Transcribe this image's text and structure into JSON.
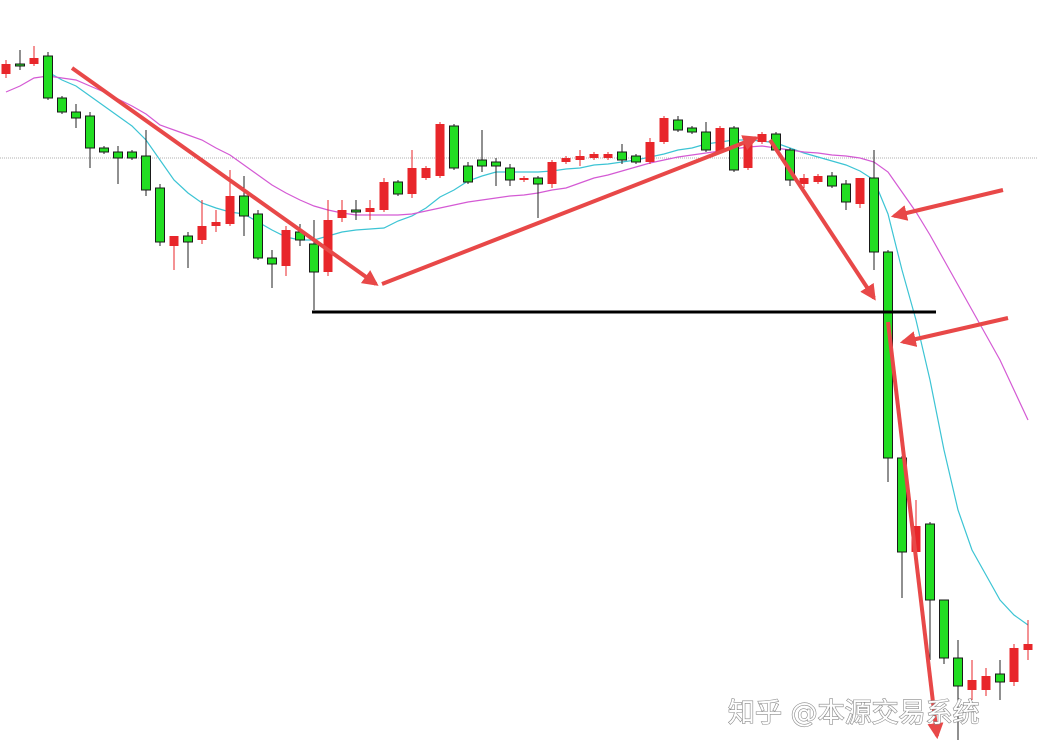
{
  "watermark": "知乎 @本源交易系统",
  "chart_data": {
    "type": "candlestick",
    "ylim": [
      0,
      756
    ],
    "up_color": "#e8262a",
    "down_color": "#22dd22",
    "open": [
      682,
      692,
      692,
      700,
      658,
      644,
      640,
      608,
      604,
      604,
      600,
      568,
      510,
      520,
      516,
      530,
      532,
      560,
      542,
      498,
      490,
      524,
      512,
      484,
      538,
      546,
      544,
      546,
      574,
      562,
      578,
      580,
      630,
      590,
      596,
      594,
      588,
      576,
      578,
      572,
      594,
      596,
      598,
      598,
      604,
      600,
      594,
      614,
      636,
      628,
      624,
      604,
      628,
      588,
      614,
      622,
      606,
      572,
      574,
      580,
      572,
      552,
      578,
      504,
      298,
      204,
      232,
      156,
      98,
      66,
      66,
      82,
      74,
      106
    ],
    "high": [
      696,
      706,
      710,
      704,
      660,
      652,
      644,
      610,
      610,
      606,
      626,
      572,
      520,
      524,
      556,
      546,
      586,
      580,
      546,
      506,
      530,
      532,
      536,
      556,
      556,
      556,
      556,
      578,
      576,
      606,
      590,
      634,
      632,
      594,
      626,
      598,
      592,
      580,
      580,
      596,
      600,
      606,
      604,
      604,
      612,
      602,
      618,
      640,
      640,
      630,
      634,
      630,
      630,
      618,
      624,
      624,
      608,
      582,
      582,
      584,
      576,
      578,
      606,
      506,
      300,
      256,
      234,
      156,
      116,
      96,
      88,
      96,
      112,
      136
    ],
    "low": [
      678,
      686,
      690,
      656,
      642,
      628,
      588,
      602,
      572,
      596,
      560,
      510,
      486,
      488,
      512,
      524,
      530,
      520,
      496,
      468,
      480,
      510,
      446,
      480,
      534,
      536,
      536,
      544,
      560,
      558,
      576,
      578,
      586,
      572,
      584,
      570,
      570,
      574,
      538,
      568,
      592,
      590,
      596,
      596,
      592,
      592,
      592,
      612,
      624,
      622,
      604,
      602,
      584,
      586,
      612,
      604,
      570,
      568,
      572,
      568,
      546,
      548,
      486,
      274,
      158,
      200,
      96,
      92,
      16,
      56,
      60,
      56,
      70,
      96
    ],
    "close": [
      692,
      690,
      698,
      658,
      644,
      638,
      608,
      604,
      598,
      598,
      566,
      514,
      520,
      514,
      530,
      534,
      560,
      540,
      498,
      492,
      526,
      516,
      484,
      536,
      546,
      544,
      548,
      574,
      562,
      588,
      588,
      632,
      588,
      574,
      590,
      590,
      576,
      578,
      572,
      594,
      598,
      600,
      602,
      602,
      596,
      594,
      614,
      638,
      626,
      624,
      606,
      628,
      586,
      616,
      622,
      606,
      576,
      578,
      580,
      570,
      554,
      578,
      504,
      298,
      204,
      230,
      156,
      98,
      70,
      76,
      80,
      74,
      108,
      112
    ],
    "series": [
      {
        "color": "#3cc4d4",
        "values": [
          null,
          null,
          null,
          684,
          676,
          670,
          660,
          650,
          640,
          630,
          616,
          596,
          576,
          563,
          553,
          548,
          544,
          542,
          534,
          526,
          519,
          516,
          516,
          520,
          524,
          526,
          527,
          528,
          535,
          540,
          548,
          559,
          566,
          575,
          580,
          584,
          584,
          584,
          584,
          585,
          587,
          588,
          591,
          592,
          594,
          596,
          599,
          602,
          606,
          608,
          612,
          614,
          616,
          616,
          615,
          613,
          608,
          603,
          599,
          595,
          591,
          585,
          576,
          542,
          486,
          436,
          376,
          306,
          246,
          206,
          181,
          156,
          141,
          131
        ]
      },
      {
        "color": "#d45ad4",
        "values": [
          664,
          670,
          678,
          680,
          678,
          676,
          670,
          664,
          657,
          650,
          642,
          631,
          626,
          621,
          616,
          608,
          601,
          591,
          581,
          571,
          563,
          556,
          550,
          546,
          543,
          541,
          541,
          541,
          541,
          542,
          545,
          548,
          551,
          554,
          556,
          558,
          560,
          561,
          563,
          566,
          568,
          573,
          578,
          581,
          585,
          589,
          593,
          596,
          599,
          601,
          603,
          605,
          607,
          609,
          610,
          608,
          606,
          604,
          603,
          601,
          600,
          598,
          594,
          584,
          564,
          544,
          521,
          496,
          471,
          446,
          421,
          396,
          366,
          336
        ]
      }
    ]
  }
}
